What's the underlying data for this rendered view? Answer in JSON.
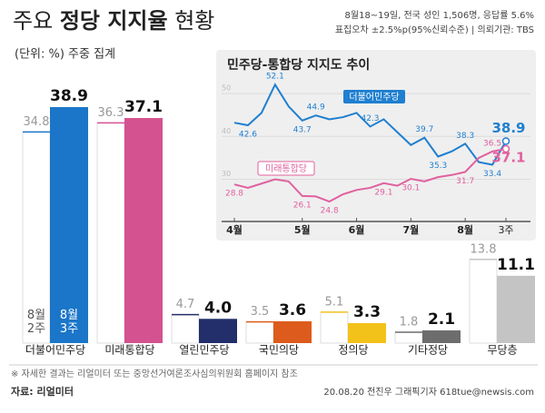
{
  "header": {
    "title_parts": [
      "주요",
      "정당 지지율",
      "현황"
    ],
    "subtitle": "(단위: %) 주중 집계",
    "notes": [
      "8월18~19일, 전국 성인 1,506명, 응답률 5.6%",
      "표집오차 ±2.5%p(95%신뢰수준) | 의뢰기관: TBS"
    ]
  },
  "chart_data": [
    {
      "type": "bar",
      "categories": [
        "더불어민주당",
        "미래통합당",
        "열린민주당",
        "국민의당",
        "정의당",
        "기타정당",
        "무당층"
      ],
      "series": [
        {
          "name": "8월 2주",
          "color": "#ffffff",
          "values": [
            34.8,
            36.3,
            4.7,
            3.5,
            5.1,
            1.8,
            13.8
          ]
        },
        {
          "name": "8월 3주",
          "colors": [
            "#1b76c9",
            "#d4528f",
            "#232f6b",
            "#dd5b1c",
            "#f3c21a",
            "#6d6d6d",
            "#c4c4c4"
          ],
          "values": [
            38.9,
            37.1,
            4.0,
            3.6,
            3.3,
            2.1,
            11.1
          ],
          "value_labels": [
            "38.9",
            "37.1",
            "4.0",
            "3.6",
            "3.3",
            "2.1",
            "11.1"
          ]
        }
      ]
    },
    {
      "type": "line",
      "title": "민주당-통합당 지지도 추이",
      "categories": [
        "4월",
        null,
        null,
        null,
        null,
        "5월",
        null,
        null,
        null,
        "6월",
        null,
        null,
        null,
        "7월",
        null,
        null,
        null,
        "8월",
        null,
        null,
        "3주"
      ],
      "ylim": [
        21,
        55
      ],
      "yticks": [
        30,
        40,
        50
      ],
      "grid": true,
      "series": [
        {
          "name": "더불어민주당",
          "color": "#1f7fd0",
          "values": [
            43.2,
            42.6,
            45.5,
            52.1,
            47.0,
            43.7,
            44.9,
            44.0,
            44.5,
            45.5,
            42.3,
            44.0,
            41.0,
            38.0,
            39.7,
            35.3,
            36.5,
            38.3,
            34.0,
            33.4,
            38.9
          ],
          "value_labels": [
            null,
            "42.6",
            null,
            "52.1",
            null,
            "43.7",
            "44.9",
            null,
            null,
            null,
            "42.3",
            null,
            null,
            null,
            "39.7",
            "35.3",
            null,
            "38.3",
            null,
            "33.4",
            "38.9"
          ]
        },
        {
          "name": "미래통합당",
          "color": "#e0609e",
          "values": [
            28.8,
            28.0,
            29.0,
            30.0,
            29.5,
            26.1,
            26.0,
            24.8,
            26.5,
            27.5,
            28.0,
            29.1,
            28.5,
            30.1,
            29.5,
            30.5,
            31.0,
            31.7,
            35.0,
            36.5,
            37.1
          ],
          "value_labels": [
            "28.8",
            null,
            null,
            null,
            null,
            "26.1",
            null,
            "24.8",
            null,
            null,
            null,
            "29.1",
            null,
            "30.1",
            null,
            null,
            null,
            "31.7",
            null,
            "36.5",
            "37.1"
          ]
        }
      ]
    }
  ],
  "footer": {
    "note": "※ 자세한 결과는 리얼미터 또는 중앙선거여론조사심의위원회 홈페이지 참조",
    "source": "자료: 리얼미터",
    "credit": "20.08.20 전진우 그래픽기자 618tue@newsis.com"
  }
}
